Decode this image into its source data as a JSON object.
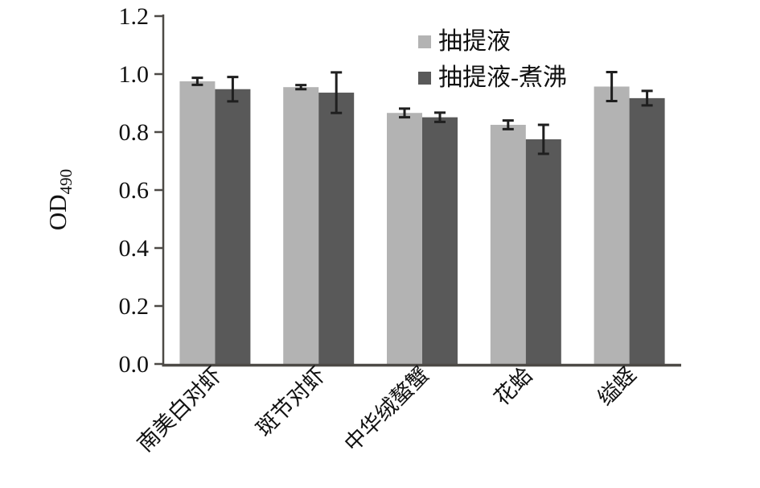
{
  "figure": {
    "background": "#ffffff"
  },
  "chart_data": {
    "type": "bar",
    "title": "",
    "xlabel": "",
    "ylabel": "OD",
    "ylabel_subscript": "490",
    "ylim": [
      0,
      1.2
    ],
    "ytick_values": [
      0.0,
      0.2,
      0.4,
      0.6,
      0.8,
      1.0,
      1.2
    ],
    "ytick_labels": [
      "0.0",
      "0.2",
      "0.4",
      "0.6",
      "0.8",
      "1.0",
      "1.2"
    ],
    "categories": [
      "南美白对虾",
      "斑节对虾",
      "中华绒螯蟹",
      "花蛤",
      "缢蛏"
    ],
    "series": [
      {
        "name": "抽提液",
        "color": "#b3b3b3",
        "values": [
          0.975,
          0.955,
          0.866,
          0.825,
          0.957
        ],
        "errors": [
          0.012,
          0.007,
          0.015,
          0.015,
          0.05
        ]
      },
      {
        "name": "抽提液-煮沸",
        "color": "#595959",
        "values": [
          0.948,
          0.936,
          0.851,
          0.775,
          0.917
        ],
        "errors": [
          0.042,
          0.07,
          0.016,
          0.05,
          0.025
        ]
      }
    ],
    "legend_position": "top-center",
    "grid": false,
    "bar_group_gap": true,
    "error_bar_color": "#1f1f1f",
    "axis_color": "#4d4a46",
    "text_color": "#111111"
  }
}
